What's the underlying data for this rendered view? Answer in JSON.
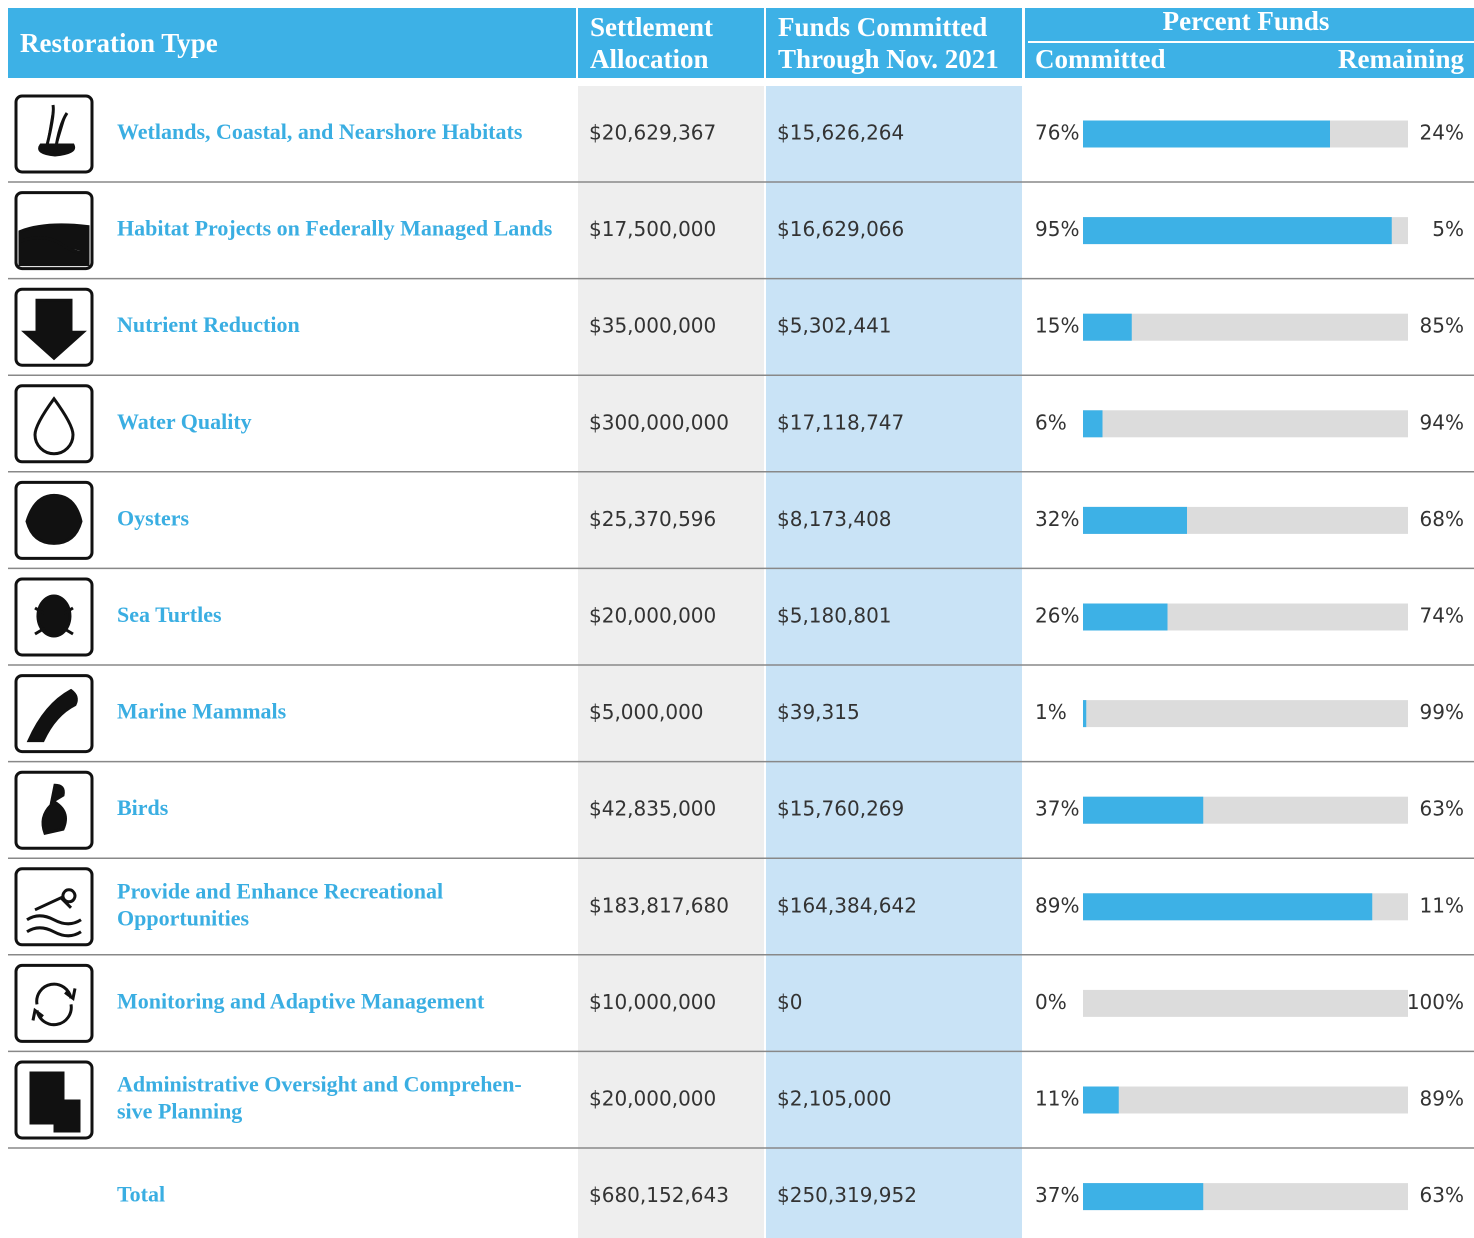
{
  "header": {
    "restoration_type": "Restoration Type",
    "settlement_allocation": [
      "Settlement",
      "Allocation"
    ],
    "funds_committed": [
      "Funds Committed",
      "Through Nov. 2021"
    ],
    "percent_funds": "Percent Funds",
    "committed": "Committed",
    "remaining": "Remaining"
  },
  "table": {
    "rows": [
      {
        "label": [
          "Wetlands, Coastal, and Nearshore Habitats"
        ],
        "allocation": "$20,629,367",
        "committed": "$15,626,264",
        "pct_committed": {
          "value": 76,
          "label": "76%"
        },
        "pct_remaining": "24%"
      },
      {
        "label": [
          "Habitat Projects on Federally Managed Lands"
        ],
        "allocation": "$17,500,000",
        "committed": "$16,629,066",
        "pct_committed": {
          "value": 95,
          "label": "95%"
        },
        "pct_remaining": "5%"
      },
      {
        "label": [
          "Nutrient Reduction"
        ],
        "allocation": "$35,000,000",
        "committed": "$5,302,441",
        "pct_committed": {
          "value": 15,
          "label": "15%"
        },
        "pct_remaining": "85%"
      },
      {
        "label": [
          "Water Quality"
        ],
        "allocation": "$300,000,000",
        "committed": "$17,118,747",
        "pct_committed": {
          "value": 6,
          "label": "6%"
        },
        "pct_remaining": "94%"
      },
      {
        "label": [
          "Oysters"
        ],
        "allocation": "$25,370,596",
        "committed": "$8,173,408",
        "pct_committed": {
          "value": 32,
          "label": "32%"
        },
        "pct_remaining": "68%"
      },
      {
        "label": [
          "Sea Turtles"
        ],
        "allocation": "$20,000,000",
        "committed": "$5,180,801",
        "pct_committed": {
          "value": 26,
          "label": "26%"
        },
        "pct_remaining": "74%"
      },
      {
        "label": [
          "Marine Mammals"
        ],
        "allocation": "$5,000,000",
        "committed": "$39,315",
        "pct_committed": {
          "value": 1,
          "label": "1%"
        },
        "pct_remaining": "99%"
      },
      {
        "label": [
          "Birds"
        ],
        "allocation": "$42,835,000",
        "committed": "$15,760,269",
        "pct_committed": {
          "value": 37,
          "label": "37%"
        },
        "pct_remaining": "63%"
      },
      {
        "label": [
          "Provide and Enhance Recreational",
          "Opportunities"
        ],
        "allocation": "$183,817,680",
        "committed": "$164,384,642",
        "pct_committed": {
          "value": 89,
          "label": "89%"
        },
        "pct_remaining": "11%"
      },
      {
        "label": [
          "Monitoring and Adaptive Management"
        ],
        "allocation": "$10,000,000",
        "committed": "$0",
        "pct_committed": {
          "value": 0,
          "label": "0%"
        },
        "pct_remaining": "100%"
      },
      {
        "label": [
          "Administrative Oversight and Comprehen-",
          "sive Planning"
        ],
        "allocation": "$20,000,000",
        "committed": "$2,105,000",
        "pct_committed": {
          "value": 11,
          "label": "11%"
        },
        "pct_remaining": "89%"
      }
    ],
    "total": {
      "label": [
        "Total"
      ],
      "allocation": "$680,152,643",
      "committed": "$250,319,952",
      "pct_committed": {
        "value": 37,
        "label": "37%"
      },
      "pct_remaining": "63%"
    }
  }
}
